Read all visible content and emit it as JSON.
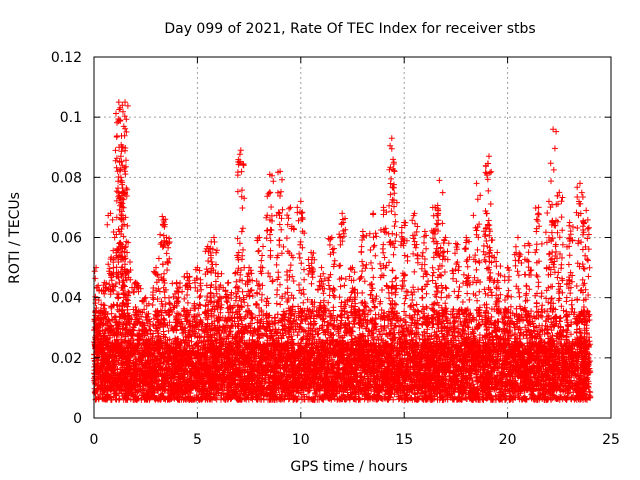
{
  "chart_data": {
    "type": "scatter",
    "title": "Day 099 of 2021, Rate Of TEC Index for receiver stbs",
    "xlabel": "GPS time / hours",
    "ylabel": "ROTI / TECUs",
    "xlim": [
      0,
      25
    ],
    "ylim": [
      0,
      0.12
    ],
    "x_ticks": [
      0,
      5,
      10,
      15,
      20,
      25
    ],
    "x_tick_labels": [
      "0",
      "5",
      "10",
      "15",
      "20",
      "25"
    ],
    "y_ticks": [
      0,
      0.02,
      0.04,
      0.06,
      0.08,
      0.1,
      0.12
    ],
    "y_tick_labels": [
      "0",
      "0.02",
      "0.04",
      "0.06",
      "0.08",
      "0.1",
      "0.12"
    ],
    "grid": true,
    "marker": "+",
    "color": "#ff0000",
    "series": [
      {
        "name": "ROTI",
        "x": [
          0.1,
          0.3,
          0.5,
          0.8,
          1.0,
          1.2,
          1.25,
          1.3,
          1.4,
          1.5,
          1.6,
          2.0,
          2.5,
          3.0,
          3.3,
          3.5,
          4.0,
          4.5,
          5.0,
          5.5,
          5.8,
          6.0,
          6.5,
          7.0,
          7.1,
          7.5,
          8.0,
          8.5,
          9.0,
          9.5,
          10.0,
          10.5,
          11.0,
          11.5,
          12.0,
          12.5,
          13.0,
          13.5,
          14.0,
          14.4,
          14.5,
          15.0,
          15.5,
          16.0,
          16.5,
          16.7,
          17.0,
          17.5,
          18.0,
          18.5,
          19.0,
          19.1,
          19.5,
          20.0,
          20.5,
          21.0,
          21.5,
          22.0,
          22.2,
          22.5,
          23.0,
          23.5,
          23.8
        ],
        "y": [
          0.05,
          0.035,
          0.045,
          0.068,
          0.06,
          0.105,
          0.099,
          0.08,
          0.09,
          0.105,
          0.055,
          0.045,
          0.04,
          0.05,
          0.067,
          0.06,
          0.045,
          0.048,
          0.05,
          0.057,
          0.06,
          0.048,
          0.045,
          0.055,
          0.089,
          0.05,
          0.06,
          0.081,
          0.082,
          0.07,
          0.072,
          0.055,
          0.05,
          0.06,
          0.068,
          0.05,
          0.062,
          0.068,
          0.07,
          0.093,
          0.085,
          0.065,
          0.068,
          0.062,
          0.07,
          0.079,
          0.06,
          0.058,
          0.06,
          0.078,
          0.068,
          0.087,
          0.055,
          0.05,
          0.06,
          0.058,
          0.07,
          0.072,
          0.096,
          0.075,
          0.065,
          0.078,
          0.069
        ]
      }
    ]
  }
}
